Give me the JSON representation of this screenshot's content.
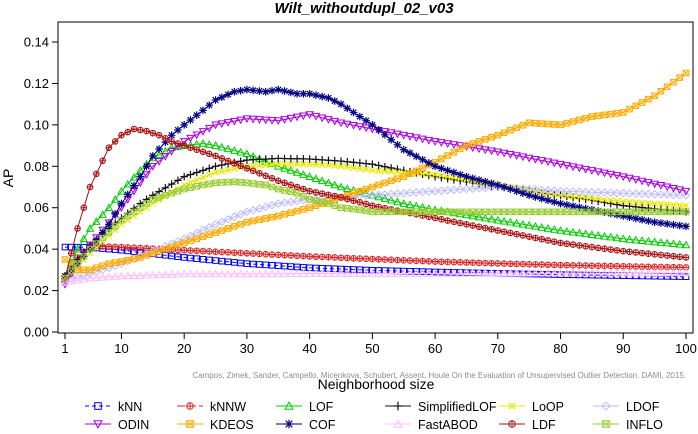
{
  "chart_data": {
    "type": "line",
    "title": "Wilt_withoutdupl_02_v03",
    "xlabel": "Neighborhood size",
    "ylabel": "AP",
    "xlim": [
      1,
      100
    ],
    "ylim": [
      0.0,
      0.145
    ],
    "xticks": [
      1,
      10,
      20,
      30,
      40,
      50,
      60,
      70,
      80,
      90,
      100
    ],
    "yticks": [
      "0.00",
      "0.02",
      "0.04",
      "0.06",
      "0.08",
      "0.10",
      "0.12",
      "0.14"
    ],
    "grid": false,
    "legend_position": "bottom",
    "watermark": "Campos, Zimek, Sander, Campello, Micenkova, Schubert, Assent, Houle On the Evaluation of Unsupervised Outlier Detection. DAMI, 2015.",
    "series": [
      {
        "name": "kNN",
        "color": "#0000ff",
        "marker": "square",
        "dash": "4,3",
        "x": [
          1,
          2,
          5,
          10,
          20,
          30,
          40,
          50,
          60,
          70,
          80,
          90,
          100
        ],
        "y": [
          0.041,
          0.041,
          0.0408,
          0.0395,
          0.036,
          0.033,
          0.031,
          0.0298,
          0.029,
          0.0283,
          0.0277,
          0.0272,
          0.0267
        ]
      },
      {
        "name": "kNNW",
        "color": "#dd2222",
        "marker": "circle-dot",
        "dash": "8,3",
        "x": [
          1,
          3,
          5,
          10,
          20,
          30,
          40,
          50,
          60,
          70,
          80,
          90,
          100
        ],
        "y": [
          0.025,
          0.036,
          0.0415,
          0.041,
          0.0395,
          0.038,
          0.0365,
          0.0352,
          0.034,
          0.0331,
          0.0323,
          0.0317,
          0.0312
        ]
      },
      {
        "name": "LOF",
        "color": "#00cc00",
        "marker": "triangle-up",
        "dash": "",
        "x": [
          1,
          3,
          5,
          8,
          10,
          13,
          15,
          18,
          20,
          23,
          25,
          30,
          35,
          40,
          45,
          50,
          55,
          60,
          70,
          80,
          90,
          100
        ],
        "y": [
          0.027,
          0.04,
          0.05,
          0.06,
          0.068,
          0.078,
          0.084,
          0.089,
          0.09,
          0.091,
          0.09,
          0.086,
          0.08,
          0.075,
          0.07,
          0.066,
          0.062,
          0.059,
          0.054,
          0.049,
          0.045,
          0.042
        ]
      },
      {
        "name": "SimplifiedLOF",
        "color": "#111111",
        "marker": "plus",
        "dash": "",
        "x": [
          1,
          3,
          5,
          8,
          10,
          13,
          15,
          20,
          25,
          30,
          35,
          40,
          45,
          50,
          55,
          60,
          70,
          80,
          90,
          100
        ],
        "y": [
          0.027,
          0.035,
          0.042,
          0.05,
          0.055,
          0.062,
          0.066,
          0.075,
          0.08,
          0.083,
          0.0838,
          0.0835,
          0.0825,
          0.081,
          0.078,
          0.075,
          0.07,
          0.066,
          0.061,
          0.058
        ]
      },
      {
        "name": "LoOP",
        "color": "#e8e800",
        "marker": "x",
        "dash": "",
        "x": [
          1,
          5,
          10,
          15,
          20,
          25,
          30,
          35,
          40,
          45,
          50,
          55,
          60,
          70,
          80,
          90,
          100
        ],
        "y": [
          0.025,
          0.038,
          0.052,
          0.062,
          0.071,
          0.077,
          0.08,
          0.081,
          0.081,
          0.08,
          0.078,
          0.077,
          0.076,
          0.071,
          0.066,
          0.063,
          0.061
        ]
      },
      {
        "name": "LDOF",
        "color": "#bbbbff",
        "marker": "diamond",
        "dash": "",
        "x": [
          1,
          5,
          10,
          15,
          20,
          25,
          30,
          35,
          40,
          45,
          50,
          55,
          60,
          65,
          70,
          75,
          80,
          90,
          100
        ],
        "y": [
          0.025,
          0.028,
          0.033,
          0.039,
          0.045,
          0.052,
          0.058,
          0.062,
          0.064,
          0.065,
          0.066,
          0.067,
          0.068,
          0.069,
          0.07,
          0.069,
          0.068,
          0.067,
          0.066
        ]
      },
      {
        "name": "ODIN",
        "color": "#aa00dd",
        "marker": "triangle-down",
        "dash": "",
        "x": [
          1,
          3,
          5,
          10,
          15,
          20,
          25,
          30,
          35,
          40,
          45,
          50,
          55,
          60,
          70,
          80,
          90,
          100
        ],
        "y": [
          0.023,
          0.033,
          0.042,
          0.06,
          0.08,
          0.092,
          0.1,
          0.103,
          0.102,
          0.105,
          0.101,
          0.098,
          0.095,
          0.092,
          0.087,
          0.081,
          0.075,
          0.068
        ]
      },
      {
        "name": "KDEOS",
        "color": "#ffaa00",
        "marker": "square-x",
        "dash": "",
        "x": [
          1,
          3,
          5,
          8,
          10,
          13,
          15,
          20,
          25,
          30,
          35,
          40,
          45,
          50,
          55,
          60,
          65,
          70,
          75,
          80,
          85,
          90,
          95,
          100
        ],
        "y": [
          0.035,
          0.03,
          0.03,
          0.033,
          0.034,
          0.036,
          0.038,
          0.043,
          0.048,
          0.053,
          0.056,
          0.06,
          0.065,
          0.07,
          0.075,
          0.082,
          0.09,
          0.095,
          0.101,
          0.1,
          0.104,
          0.106,
          0.114,
          0.125
        ]
      },
      {
        "name": "COF",
        "color": "#000080",
        "marker": "star",
        "dash": "",
        "x": [
          1,
          3,
          5,
          8,
          10,
          13,
          15,
          18,
          20,
          23,
          25,
          28,
          30,
          33,
          35,
          38,
          40,
          43,
          45,
          50,
          55,
          60,
          65,
          70,
          75,
          80,
          85,
          90,
          95,
          100
        ],
        "y": [
          0.027,
          0.033,
          0.04,
          0.052,
          0.062,
          0.075,
          0.085,
          0.095,
          0.1,
          0.107,
          0.112,
          0.116,
          0.117,
          0.116,
          0.117,
          0.115,
          0.115,
          0.113,
          0.11,
          0.1,
          0.088,
          0.08,
          0.075,
          0.071,
          0.066,
          0.062,
          0.059,
          0.056,
          0.053,
          0.051
        ]
      },
      {
        "name": "FastABOD",
        "color": "#ffbbff",
        "marker": "triangle-up-open",
        "dash": "",
        "x": [
          1,
          5,
          10,
          15,
          20,
          30,
          40,
          50,
          60,
          70,
          80,
          90,
          100
        ],
        "y": [
          0.024,
          0.026,
          0.027,
          0.0275,
          0.028,
          0.028,
          0.0282,
          0.0282,
          0.0283,
          0.0283,
          0.0284,
          0.0284,
          0.0285
        ]
      },
      {
        "name": "LDF",
        "color": "#aa1111",
        "marker": "circle-dot",
        "dash": "",
        "x": [
          1,
          3,
          5,
          8,
          10,
          12,
          14,
          16,
          18,
          20,
          25,
          30,
          35,
          40,
          45,
          50,
          55,
          60,
          70,
          80,
          90,
          100
        ],
        "y": [
          0.026,
          0.05,
          0.07,
          0.089,
          0.095,
          0.098,
          0.097,
          0.095,
          0.092,
          0.09,
          0.085,
          0.079,
          0.073,
          0.068,
          0.065,
          0.061,
          0.058,
          0.055,
          0.049,
          0.043,
          0.039,
          0.036
        ]
      },
      {
        "name": "INFLO",
        "color": "#99cc33",
        "marker": "square-x",
        "dash": "",
        "x": [
          1,
          3,
          5,
          8,
          10,
          13,
          15,
          18,
          20,
          23,
          25,
          28,
          30,
          33,
          35,
          38,
          40,
          43,
          45,
          48,
          50
        ],
        "y": [
          0.026,
          0.033,
          0.04,
          0.048,
          0.054,
          0.06,
          0.064,
          0.067,
          0.069,
          0.071,
          0.072,
          0.0725,
          0.072,
          0.071,
          0.069,
          0.067,
          0.064,
          0.062,
          0.06,
          0.059,
          0.058
        ]
      }
    ]
  }
}
